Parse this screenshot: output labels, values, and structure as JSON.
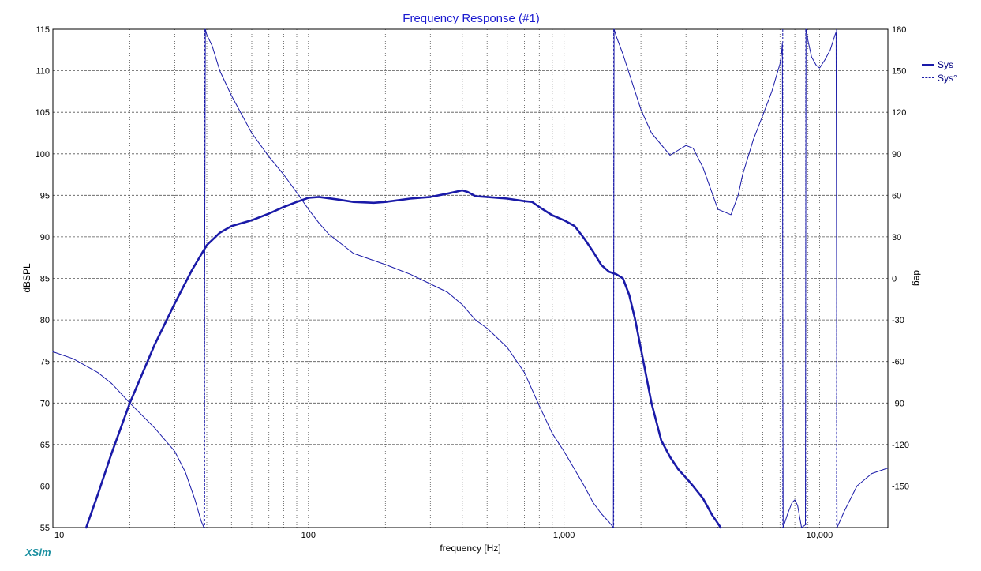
{
  "app_brand": "XSim",
  "chart_data": {
    "type": "line",
    "title": "Frequency Response (#1)",
    "xlabel": "frequency [Hz]",
    "ylabel_left": "dBSPL",
    "ylabel_right": "deg",
    "x_scale": "log",
    "xlim": [
      10,
      18500
    ],
    "ylim_left": [
      55,
      115
    ],
    "ylim_right": [
      -180,
      180
    ],
    "x_tick_labels": [
      {
        "value": 10,
        "label": "10"
      },
      {
        "value": 100,
        "label": "100"
      },
      {
        "value": 1000,
        "label": "1,000"
      },
      {
        "value": 10000,
        "label": "10,000"
      }
    ],
    "y_left_ticks": [
      "55",
      "60",
      "65",
      "70",
      "75",
      "80",
      "85",
      "90",
      "95",
      "100",
      "105",
      "110",
      "115"
    ],
    "y_right_ticks": [
      "-150",
      "-120",
      "-90",
      "-60",
      "-30",
      "0",
      "30",
      "60",
      "90",
      "120",
      "150",
      "180"
    ],
    "grid": true,
    "legend_position": "top-right",
    "colors": {
      "series": "#1a1aa8",
      "title": "#1a1ad0",
      "grid": "#555555"
    },
    "series": [
      {
        "name": "Sys",
        "axis": "left",
        "style": "solid",
        "x": [
          13.5,
          15,
          17,
          20,
          22,
          25,
          30,
          35,
          40,
          45,
          50,
          60,
          70,
          80,
          90,
          100,
          110,
          130,
          150,
          180,
          200,
          250,
          300,
          350,
          400,
          420,
          450,
          500,
          600,
          700,
          750,
          800,
          900,
          1000,
          1100,
          1200,
          1300,
          1400,
          1500,
          1600,
          1700,
          1800,
          1900,
          2000,
          2200,
          2400,
          2600,
          2800,
          3000,
          3200,
          3500,
          3800,
          4000,
          4100
        ],
        "values": [
          55,
          59,
          64,
          70,
          73,
          77,
          82,
          86,
          89,
          90.5,
          91.3,
          92,
          92.8,
          93.6,
          94.2,
          94.7,
          94.8,
          94.5,
          94.2,
          94.1,
          94.2,
          94.6,
          94.8,
          95.2,
          95.6,
          95.4,
          94.9,
          94.8,
          94.6,
          94.3,
          94.2,
          93.6,
          92.6,
          92,
          91.3,
          89.8,
          88.2,
          86.6,
          85.8,
          85.5,
          85,
          83,
          80,
          76.5,
          70,
          65.5,
          63.5,
          62,
          61,
          60,
          58.5,
          56.5,
          55.5,
          55
        ]
      },
      {
        "name": "Sys°",
        "axis": "right",
        "style": "dashed",
        "x": [
          10,
          12,
          15,
          17,
          20,
          25,
          30,
          33,
          36,
          38,
          39,
          39.5,
          40,
          42,
          45,
          50,
          60,
          70,
          80,
          90,
          100,
          110,
          120,
          150,
          200,
          250,
          300,
          350,
          400,
          450,
          500,
          600,
          700,
          800,
          900,
          1000,
          1100,
          1200,
          1300,
          1400,
          1500,
          1560,
          1570,
          1600,
          1700,
          1800,
          2000,
          2200,
          2600,
          3000,
          3200,
          3500,
          4000,
          4500,
          4800,
          5000,
          5500,
          6000,
          6500,
          7000,
          7100,
          7150,
          7200,
          7500,
          7800,
          8000,
          8200,
          8500,
          8800,
          8850,
          8900,
          9000,
          9300,
          9700,
          10000,
          10500,
          11000,
          11500,
          11600,
          11700,
          12500,
          14000,
          16000,
          18500
        ],
        "values": [
          -53,
          -58,
          -68,
          -76,
          -90,
          -108,
          -125,
          -140,
          -160,
          -175,
          -180,
          180,
          176,
          168,
          150,
          132,
          105,
          88,
          75,
          62,
          50,
          40,
          32,
          18,
          10,
          3,
          -4,
          -10,
          -19,
          -30,
          -36,
          -50,
          -68,
          -92,
          -112,
          -125,
          -138,
          -150,
          -162,
          -170,
          -176,
          -180,
          180,
          175,
          162,
          148,
          122,
          105,
          89,
          96,
          94,
          80,
          50,
          46,
          60,
          75,
          100,
          118,
          135,
          155,
          163,
          170,
          -180,
          -170,
          -162,
          -160,
          -164,
          -180,
          -178,
          180,
          178,
          172,
          160,
          154,
          152,
          158,
          165,
          176,
          178,
          -180,
          -168,
          -150,
          -141,
          -137
        ]
      }
    ]
  }
}
